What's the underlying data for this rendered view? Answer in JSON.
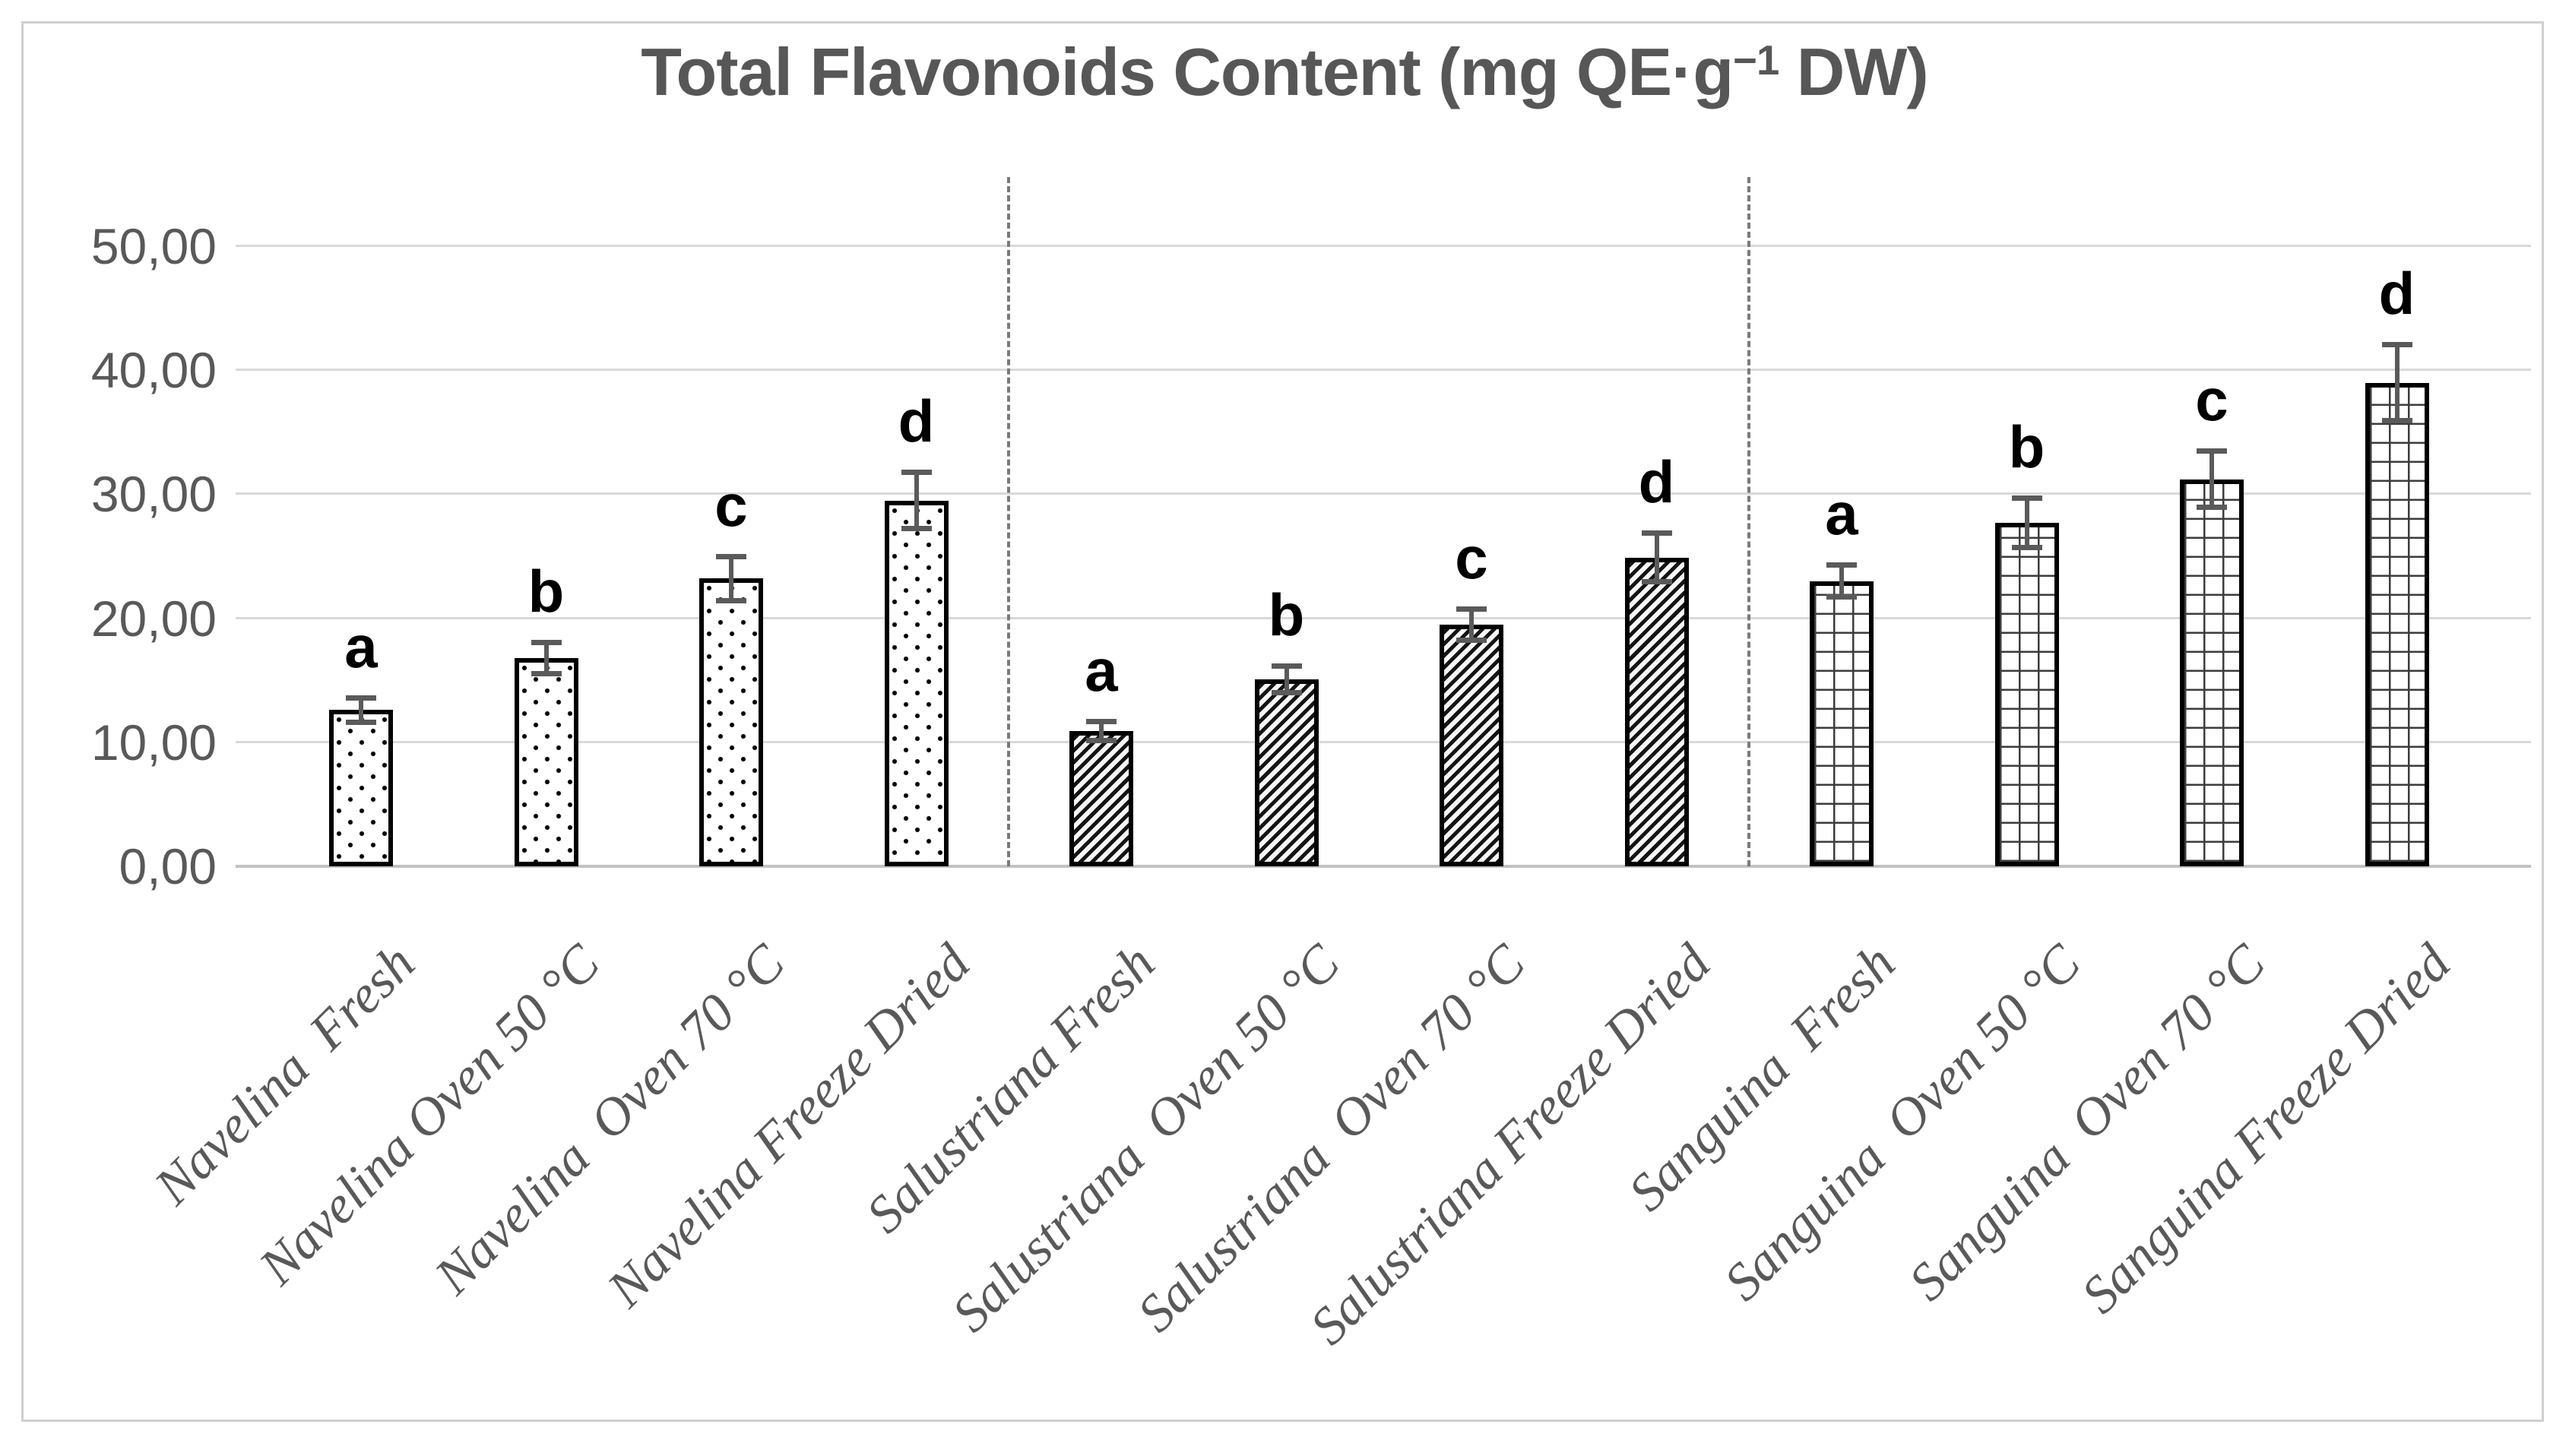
{
  "chart_data": {
    "type": "bar",
    "title": {
      "text_before_sup": "Total Flavonoids Content (mg QE·g",
      "superscript": "−1",
      "text_after_sup": " DW)"
    },
    "unit": "mg QE·g−1 DW",
    "ylim": [
      0,
      50
    ],
    "y_tick_values": [
      0,
      10,
      20,
      30,
      40,
      50
    ],
    "y_tick_labels": [
      "0,00",
      "10,00",
      "20,00",
      "30,00",
      "40,00",
      "50,00"
    ],
    "decimal_separator": ",",
    "grid": true,
    "legend": "none",
    "error_bars": true,
    "groups": [
      {
        "name": "Navelina",
        "pattern": "dots"
      },
      {
        "name": "Salustriana",
        "pattern": "diagonal-stripes"
      },
      {
        "name": "Sanguina",
        "pattern": "small-grid"
      }
    ],
    "separators_after_categories": [
      "Navelina Freeze Dried",
      "Salustriana Freeze Dried"
    ],
    "bars": [
      {
        "category": "Navelina  Fresh",
        "group": "Navelina",
        "value": 12.6,
        "error": 1.0,
        "sig_letter": "a"
      },
      {
        "category": "Navelina Oven 50 °C",
        "group": "Navelina",
        "value": 16.8,
        "error": 1.3,
        "sig_letter": "b"
      },
      {
        "category": "Navelina  Oven 70 °C",
        "group": "Navelina",
        "value": 23.2,
        "error": 1.8,
        "sig_letter": "c"
      },
      {
        "category": "Navelina Freeze Dried",
        "group": "Navelina",
        "value": 29.5,
        "error": 2.3,
        "sig_letter": "d"
      },
      {
        "category": "Salustriana Fresh",
        "group": "Salustriana",
        "value": 10.9,
        "error": 0.8,
        "sig_letter": "a"
      },
      {
        "category": "Salustriana  Oven 50 °C",
        "group": "Salustriana",
        "value": 15.1,
        "error": 1.1,
        "sig_letter": "b"
      },
      {
        "category": "Salustriana  Oven 70 °C",
        "group": "Salustriana",
        "value": 19.5,
        "error": 1.3,
        "sig_letter": "c"
      },
      {
        "category": "Salustriana Freeze Dried",
        "group": "Salustriana",
        "value": 24.9,
        "error": 2.0,
        "sig_letter": "d"
      },
      {
        "category": "Sanguina  Fresh",
        "group": "Sanguina",
        "value": 23.0,
        "error": 1.3,
        "sig_letter": "a"
      },
      {
        "category": "Sanguina  Oven 50 °C",
        "group": "Sanguina",
        "value": 27.7,
        "error": 2.0,
        "sig_letter": "b"
      },
      {
        "category": "Sanguina  Oven 70 °C",
        "group": "Sanguina",
        "value": 31.2,
        "error": 2.3,
        "sig_letter": "c"
      },
      {
        "category": "Sanguina Freeze Dried",
        "group": "Sanguina",
        "value": 39.0,
        "error": 3.1,
        "sig_letter": "d"
      }
    ]
  },
  "colors": {
    "title": "#575757",
    "axis_labels": "#595959",
    "gridline": "#d9d9d9",
    "axis_line": "#c2c2c2",
    "separator": "#7a7a7a",
    "bar_border": "#000000",
    "error_bar": "#5a5a5a",
    "sig_letter": "#000000",
    "frame_border": "#cfcfcf",
    "background": "#ffffff"
  }
}
